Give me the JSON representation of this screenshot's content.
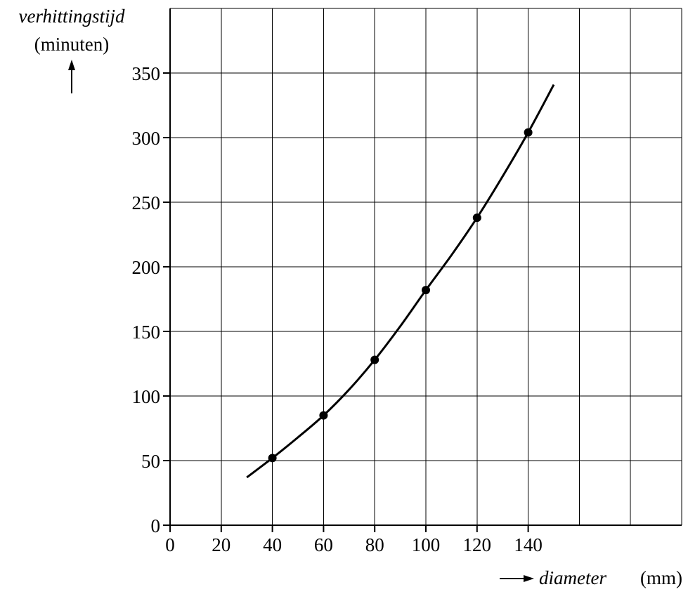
{
  "chart_data": {
    "type": "scatter",
    "title": "",
    "ylabel": "verhittingstijd",
    "ylabel_unit": "(minuten)",
    "xlabel": "diameter",
    "xlabel_unit": "(mm)",
    "xlim": [
      0,
      200
    ],
    "ylim": [
      0,
      400
    ],
    "x_ticks": [
      0,
      20,
      40,
      60,
      80,
      100,
      120,
      140
    ],
    "y_ticks": [
      0,
      50,
      100,
      150,
      200,
      250,
      300,
      350
    ],
    "grid": true,
    "series": [
      {
        "points": {
          "x": [
            40,
            60,
            80,
            100,
            120,
            140
          ],
          "y": [
            52,
            85,
            128,
            182,
            238,
            304
          ]
        },
        "curve": {
          "x": [
            30,
            40,
            50,
            60,
            70,
            80,
            90,
            100,
            110,
            120,
            130,
            140,
            150
          ],
          "y": [
            37,
            52,
            68,
            85,
            105,
            128,
            154,
            182,
            209,
            238,
            270,
            304,
            341
          ]
        }
      }
    ],
    "colors": {
      "line": "#000000",
      "grid": "#000000",
      "background": "#ffffff"
    }
  }
}
